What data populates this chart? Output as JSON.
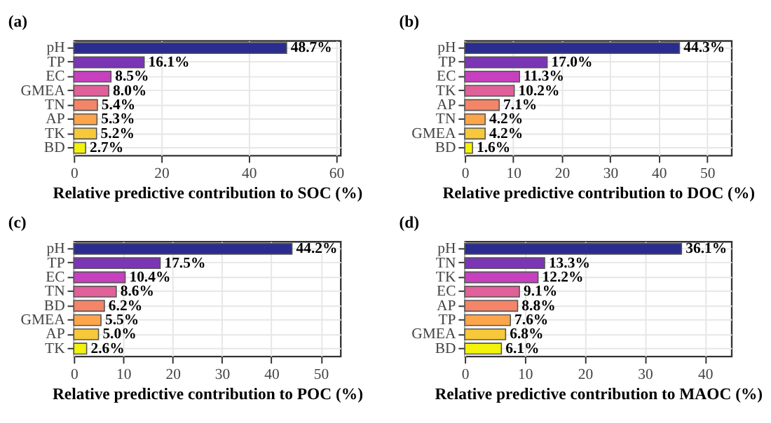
{
  "chart_data": [
    {
      "type": "bar",
      "orientation": "horizontal",
      "title": "(a)",
      "xlabel": "Relative predictive contribution to SOC (%)",
      "categories": [
        "pH",
        "TP",
        "EC",
        "GMEA",
        "TN",
        "AP",
        "TK",
        "BD"
      ],
      "values": [
        48.7,
        16.1,
        8.5,
        8.0,
        5.4,
        5.3,
        5.2,
        2.7
      ],
      "value_labels": [
        "48.7%",
        "16.1%",
        "8.5%",
        "8.0%",
        "5.4%",
        "5.3%",
        "5.2%",
        "2.7%"
      ],
      "colors": [
        "#2b2c8f",
        "#7b35b5",
        "#c640c0",
        "#e0609a",
        "#f58569",
        "#fca54a",
        "#f7c93a",
        "#f2f20a"
      ],
      "xlim": [
        0,
        61
      ],
      "xticks": [
        0,
        20,
        40,
        60
      ],
      "grid": true,
      "legend": false
    },
    {
      "type": "bar",
      "orientation": "horizontal",
      "title": "(b)",
      "xlabel": "Relative predictive contribution to DOC (%)",
      "categories": [
        "pH",
        "TP",
        "EC",
        "TK",
        "AP",
        "TN",
        "GMEA",
        "BD"
      ],
      "values": [
        44.3,
        17.0,
        11.3,
        10.2,
        7.1,
        4.2,
        4.2,
        1.6
      ],
      "value_labels": [
        "44.3%",
        "17.0%",
        "11.3%",
        "10.2%",
        "7.1%",
        "4.2%",
        "4.2%",
        "1.6%"
      ],
      "colors": [
        "#2b2c8f",
        "#7b35b5",
        "#c640c0",
        "#e0609a",
        "#f58569",
        "#fca54a",
        "#f7c93a",
        "#f2f20a"
      ],
      "xlim": [
        0,
        55
      ],
      "xticks": [
        0,
        10,
        20,
        30,
        40,
        50
      ],
      "grid": true,
      "legend": false
    },
    {
      "type": "bar",
      "orientation": "horizontal",
      "title": "(c)",
      "xlabel": "Relative predictive contribution to POC (%)",
      "categories": [
        "pH",
        "TP",
        "EC",
        "TN",
        "BD",
        "GMEA",
        "AP",
        "TK"
      ],
      "values": [
        44.2,
        17.5,
        10.4,
        8.6,
        6.2,
        5.5,
        5.0,
        2.6
      ],
      "value_labels": [
        "44.2%",
        "17.5%",
        "10.4%",
        "8.6%",
        "6.2%",
        "5.5%",
        "5.0%",
        "2.6%"
      ],
      "colors": [
        "#2b2c8f",
        "#7b35b5",
        "#c640c0",
        "#e0609a",
        "#f58569",
        "#fca54a",
        "#f7c93a",
        "#f2f20a"
      ],
      "xlim": [
        0,
        54
      ],
      "xticks": [
        0,
        10,
        20,
        30,
        40,
        50
      ],
      "grid": true,
      "legend": false
    },
    {
      "type": "bar",
      "orientation": "horizontal",
      "title": "(d)",
      "xlabel": "Relative predictive contribution to MAOC (%)",
      "categories": [
        "pH",
        "TN",
        "TK",
        "EC",
        "AP",
        "TP",
        "GMEA",
        "BD"
      ],
      "values": [
        36.1,
        13.3,
        12.2,
        9.1,
        8.8,
        7.6,
        6.8,
        6.1
      ],
      "value_labels": [
        "36.1%",
        "13.3%",
        "12.2%",
        "9.1%",
        "8.8%",
        "7.6%",
        "6.8%",
        "6.1%"
      ],
      "colors": [
        "#2b2c8f",
        "#7b35b5",
        "#c640c0",
        "#e0609a",
        "#f58569",
        "#fca54a",
        "#f7c93a",
        "#f2f20a"
      ],
      "xlim": [
        0,
        44.4
      ],
      "xticks": [
        0,
        10,
        20,
        30,
        40
      ],
      "grid": true,
      "legend": false
    }
  ]
}
